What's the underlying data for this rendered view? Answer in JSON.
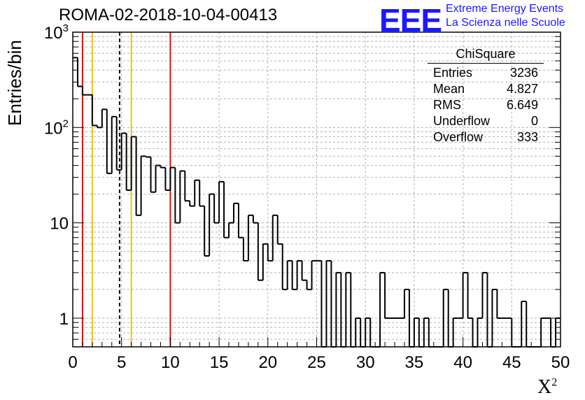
{
  "header": {
    "title": "ROMA-02-2018-10-04-00413",
    "logo_text": "EEE",
    "logo_line1": "Extreme Energy Events",
    "logo_line2": "La Scienza nelle Scuole"
  },
  "stats_box": {
    "title": "ChiSquare",
    "rows": [
      {
        "label": "Entries",
        "value": "3236"
      },
      {
        "label": "Mean",
        "value": "4.827"
      },
      {
        "label": "RMS",
        "value": "6.649"
      },
      {
        "label": "Underflow",
        "value": "0"
      },
      {
        "label": "Overflow",
        "value": "333"
      }
    ]
  },
  "chart_data": {
    "type": "histogram",
    "title": "ROMA-02-2018-10-04-00413",
    "xlabel": "X²",
    "ylabel": "Entries/bin",
    "xlim": [
      0,
      50
    ],
    "ylim": [
      0.5,
      1000
    ],
    "yscale": "log",
    "grid": true,
    "bin_width": 0.5,
    "x_ticks": [
      "0",
      "5",
      "10",
      "15",
      "20",
      "25",
      "30",
      "35",
      "40",
      "45",
      "50"
    ],
    "y_ticks": [
      "1",
      "10",
      "10^2",
      "10^3"
    ],
    "bin_counts": [
      540,
      270,
      220,
      220,
      105,
      100,
      155,
      33,
      130,
      36,
      87,
      22,
      80,
      12,
      50,
      49,
      21,
      40,
      38,
      22,
      38,
      10,
      35,
      17,
      15,
      28,
      15,
      4.5,
      20,
      10,
      27,
      7,
      10,
      16,
      7,
      4,
      12,
      10,
      2.5,
      6,
      4,
      12,
      6,
      2,
      4,
      2,
      4,
      2.5,
      2,
      4,
      4,
      0,
      4,
      0,
      3,
      0.5,
      3,
      0,
      1,
      0,
      1,
      0,
      0,
      3,
      1,
      1,
      1,
      1,
      2,
      0,
      1,
      0,
      1,
      0,
      0,
      0,
      2,
      0,
      1,
      1,
      3,
      1,
      0,
      1,
      3,
      0,
      2,
      1,
      1,
      1,
      0,
      0,
      1.5,
      0,
      0,
      0,
      1,
      1,
      0,
      1
    ],
    "vertical_lines": [
      {
        "x": 1,
        "color": "#e01010",
        "style": "solid"
      },
      {
        "x": 2,
        "color": "#f0c020",
        "style": "solid"
      },
      {
        "x": 4.8,
        "color": "#000000",
        "style": "dashed"
      },
      {
        "x": 6,
        "color": "#f0c020",
        "style": "solid"
      },
      {
        "x": 10,
        "color": "#e01010",
        "style": "solid"
      }
    ]
  },
  "colors": {
    "histogram": "#000000",
    "grid": "#b0b0b0",
    "logo": "#1a1aff"
  }
}
